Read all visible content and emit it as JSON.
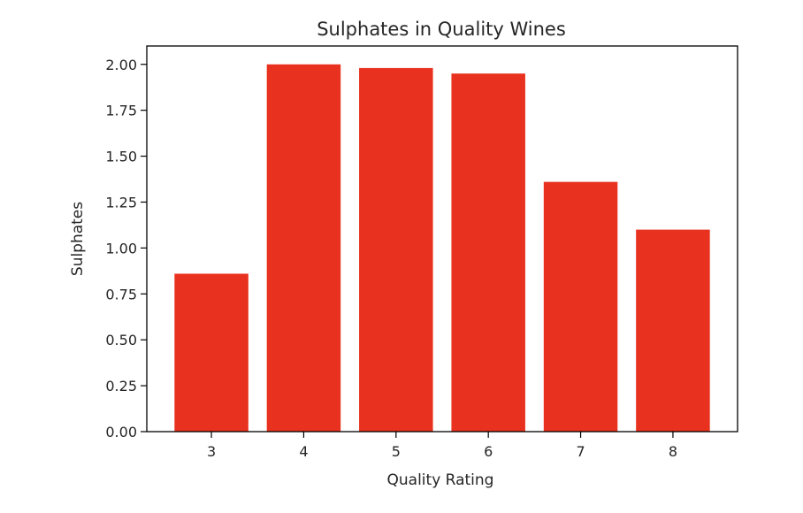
{
  "chart_data": {
    "type": "bar",
    "title": "Sulphates in Quality Wines",
    "xlabel": "Quality Rating",
    "ylabel": "Sulphates",
    "categories": [
      "3",
      "4",
      "5",
      "6",
      "7",
      "8"
    ],
    "values": [
      0.86,
      2.0,
      1.98,
      1.95,
      1.36,
      1.1
    ],
    "ylim": [
      0,
      2.1
    ],
    "yticks": [
      "0.00",
      "0.25",
      "0.50",
      "0.75",
      "1.00",
      "1.25",
      "1.50",
      "1.75",
      "2.00"
    ],
    "bar_color": "#e8321f",
    "grid": false,
    "legend": "none"
  }
}
